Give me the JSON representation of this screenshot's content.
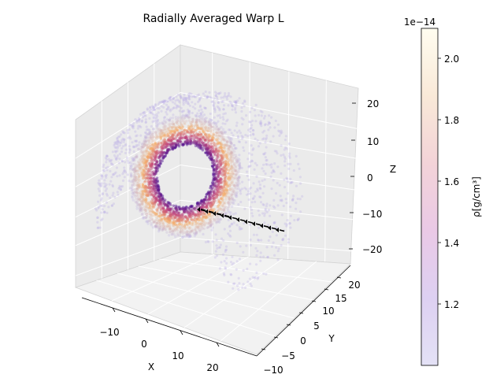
{
  "chart_data": {
    "type": "scatter",
    "projection": "3d",
    "title": "Radially Averaged Warp L",
    "xlabel": "X",
    "ylabel": "Y",
    "zlabel": "Z",
    "xlim": [
      -18,
      27
    ],
    "ylim": [
      -11,
      24
    ],
    "zlim": [
      -24,
      24
    ],
    "x_ticks": [
      "−10",
      "0",
      "10",
      "20"
    ],
    "y_ticks": [
      "−10",
      "−5",
      "0",
      "5",
      "10",
      "15",
      "20"
    ],
    "z_ticks": [
      "−20",
      "−10",
      "0",
      "10",
      "20"
    ],
    "grid": true,
    "colorbar": {
      "label": "ρ[g/cm³]",
      "offset_text": "1e−14",
      "ticks": [
        "1.2",
        "1.4",
        "1.6",
        "1.8",
        "2.0"
      ],
      "range": [
        1.0,
        2.1
      ],
      "colormap": "magma_r-like",
      "colors": [
        "#e4e2f6",
        "#d8c6ef",
        "#e0b8e8",
        "#f0c9d8",
        "#f8e6d4",
        "#fffdf0"
      ]
    },
    "series": [
      {
        "kind": "warped-disk-particles",
        "description_values": {
          "ring_inner_radius": 6,
          "ring_outer_radius": 12,
          "warp_tail_max_radius": 22,
          "density_min": 1.0,
          "density_max": 2.1
        },
        "colors": {
          "dense": "#4b0c8f",
          "mid": "#c0407a",
          "bright": "#f6b06a",
          "sparse": "#b6aae6"
        }
      },
      {
        "kind": "angular-momentum-vectors",
        "color": "#000000",
        "count": 11
      }
    ]
  }
}
